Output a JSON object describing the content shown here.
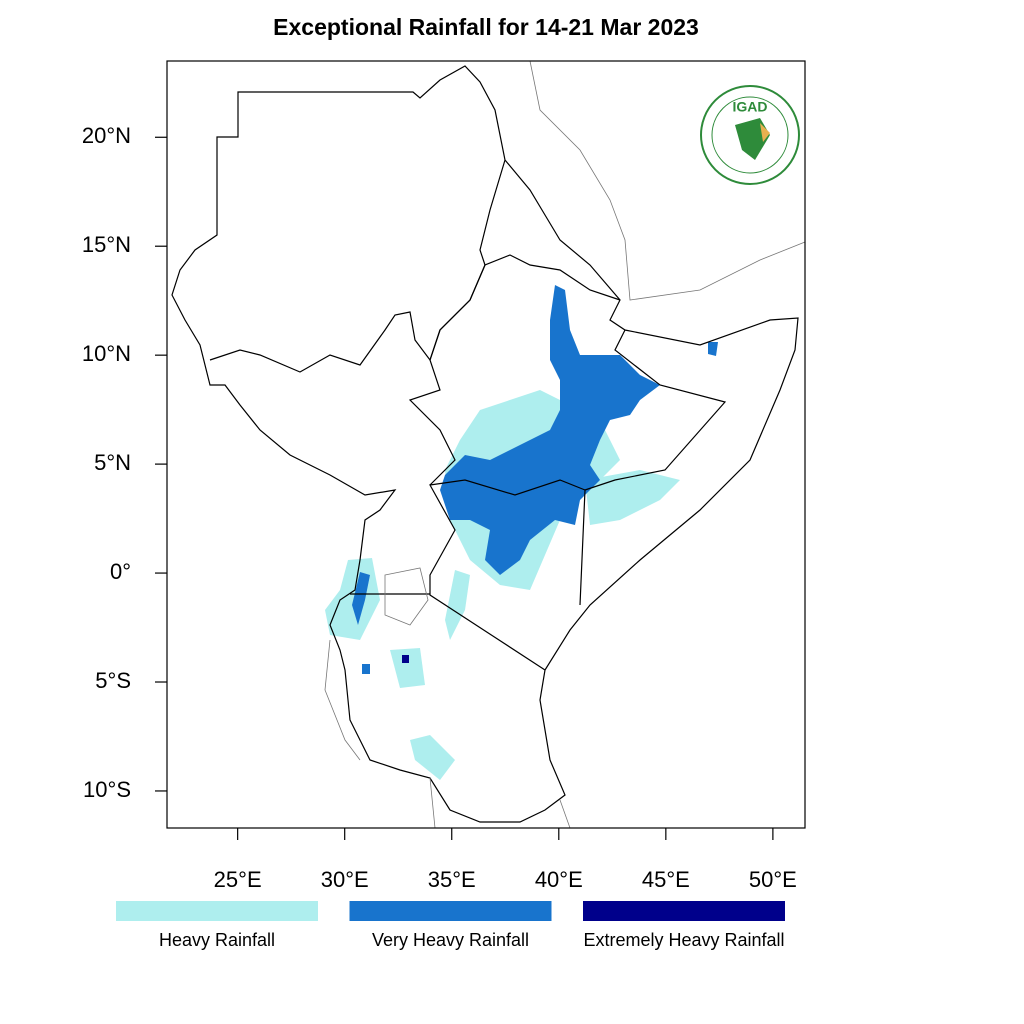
{
  "title": "Exceptional Rainfall for 14-21 Mar 2023",
  "map": {
    "xlim": [
      21.7,
      51.5
    ],
    "ylim": [
      -11.7,
      23.5
    ],
    "xticks": [
      {
        "value": 25,
        "label": "25°E"
      },
      {
        "value": 30,
        "label": "30°E"
      },
      {
        "value": 35,
        "label": "35°E"
      },
      {
        "value": 40,
        "label": "40°E"
      },
      {
        "value": 45,
        "label": "45°E"
      },
      {
        "value": 50,
        "label": "50°E"
      }
    ],
    "yticks": [
      {
        "value": 20,
        "label": "20°N"
      },
      {
        "value": 15,
        "label": "15°N"
      },
      {
        "value": 10,
        "label": "10°N"
      },
      {
        "value": 5,
        "label": "5°N"
      },
      {
        "value": 0,
        "label": "0°"
      },
      {
        "value": -5,
        "label": "5°S"
      },
      {
        "value": -10,
        "label": "10°S"
      }
    ]
  },
  "legend": [
    {
      "label": "Heavy Rainfall",
      "color": "#aeeeee"
    },
    {
      "label": "Very Heavy Rainfall",
      "color": "#1874cd"
    },
    {
      "label": "Extremely Heavy Rainfall",
      "color": "#00008b"
    }
  ],
  "logo": {
    "text": "IGAD"
  }
}
